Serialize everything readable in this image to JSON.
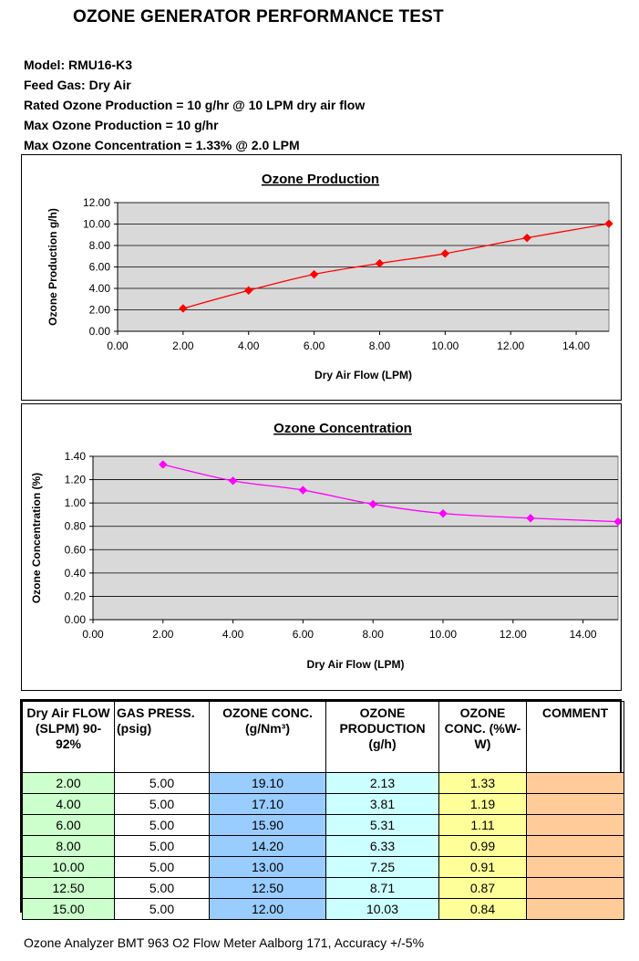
{
  "title": "OZONE GENERATOR PERFORMANCE TEST",
  "specs": {
    "model": "Model: RMU16-K3",
    "feed_gas": "Feed Gas: Dry Air",
    "rated": "Rated Ozone Production = 10 g/hr @ 10 LPM dry air flow",
    "max_prod": "Max Ozone Production = 10 g/hr",
    "max_conc": "Max Ozone Concentration = 1.33% @ 2.0 LPM"
  },
  "chart_data": [
    {
      "type": "line",
      "title": "Ozone Production",
      "xlabel": "Dry Air Flow (LPM)",
      "ylabel": "Ozone Production g/h)",
      "x": [
        2.0,
        4.0,
        6.0,
        8.0,
        10.0,
        12.5,
        15.0
      ],
      "y": [
        2.13,
        3.81,
        5.31,
        6.33,
        7.25,
        8.71,
        10.03
      ],
      "xlim": [
        0,
        15
      ],
      "ylim": [
        0,
        12
      ],
      "xticks": [
        "0.00",
        "2.00",
        "4.00",
        "6.00",
        "8.00",
        "10.00",
        "12.00",
        "14.00"
      ],
      "yticks": [
        "0.00",
        "2.00",
        "4.00",
        "6.00",
        "8.00",
        "10.00",
        "12.00"
      ],
      "color": "#ff0000",
      "marker": "diamond",
      "grid": "horizontal"
    },
    {
      "type": "line",
      "title": "Ozone Concentration",
      "xlabel": "Dry Air Flow (LPM)",
      "ylabel": "Ozone Concentration (%)",
      "x": [
        2.0,
        4.0,
        6.0,
        8.0,
        10.0,
        12.5,
        15.0
      ],
      "y": [
        1.33,
        1.19,
        1.11,
        0.99,
        0.91,
        0.87,
        0.84
      ],
      "xlim": [
        0,
        15
      ],
      "ylim": [
        0,
        1.4
      ],
      "xticks": [
        "0.00",
        "2.00",
        "4.00",
        "6.00",
        "8.00",
        "10.00",
        "12.00",
        "14.00"
      ],
      "yticks": [
        "0.00",
        "0.20",
        "0.40",
        "0.60",
        "0.80",
        "1.00",
        "1.20",
        "1.40"
      ],
      "color": "#ff00ff",
      "marker": "diamond",
      "grid": "horizontal"
    }
  ],
  "table": {
    "headers": {
      "flow": "Dry Air FLOW (SLPM) 90-92%",
      "press": "GAS PRESS. (psig)",
      "conc": "OZONE CONC. (g/Nm³)",
      "prod": "OZONE PRODUCTION (g/h)",
      "pct": "OZONE CONC. (%W-W)",
      "comment": "COMMENT"
    },
    "rows": [
      {
        "flow": "2.00",
        "press": "5.00",
        "conc": "19.10",
        "prod": "2.13",
        "pct": "1.33",
        "comment": ""
      },
      {
        "flow": "4.00",
        "press": "5.00",
        "conc": "17.10",
        "prod": "3.81",
        "pct": "1.19",
        "comment": ""
      },
      {
        "flow": "6.00",
        "press": "5.00",
        "conc": "15.90",
        "prod": "5.31",
        "pct": "1.11",
        "comment": ""
      },
      {
        "flow": "8.00",
        "press": "5.00",
        "conc": "14.20",
        "prod": "6.33",
        "pct": "0.99",
        "comment": ""
      },
      {
        "flow": "10.00",
        "press": "5.00",
        "conc": "13.00",
        "prod": "7.25",
        "pct": "0.91",
        "comment": ""
      },
      {
        "flow": "12.50",
        "press": "5.00",
        "conc": "12.50",
        "prod": "8.71",
        "pct": "0.87",
        "comment": ""
      },
      {
        "flow": "15.00",
        "press": "5.00",
        "conc": "12.00",
        "prod": "10.03",
        "pct": "0.84",
        "comment": ""
      }
    ]
  },
  "footer": "Ozone Analyzer BMT 963 O2 Flow Meter Aalborg 171, Accuracy +/-5%"
}
